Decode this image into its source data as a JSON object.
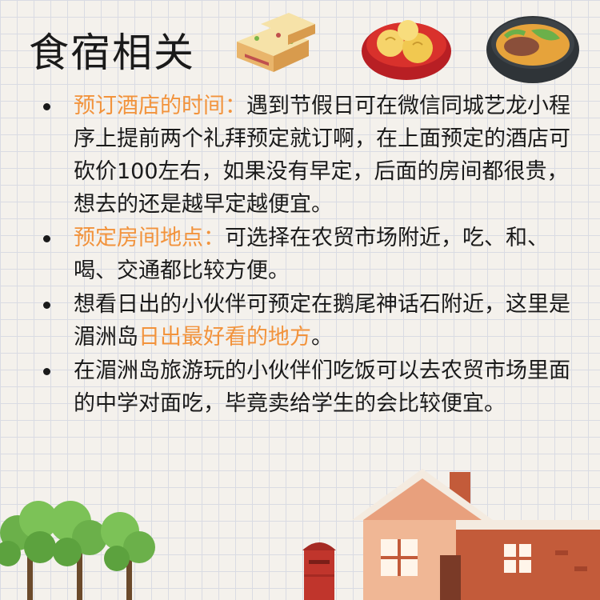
{
  "title": "食宿相关",
  "items": [
    {
      "lead": "预订酒店的时间：",
      "text": "遇到节假日可在微信同城艺龙小程序上提前两个礼拜预定就订啊，在上面预定的酒店可砍价100左右，如果没有早定，后面的房间都很贵，想去的还是越早定越便宜。"
    },
    {
      "lead": "预定房间地点：",
      "text": "可选择在农贸市场附近，吃、和、喝、交通都比较方便。"
    },
    {
      "pre": "想看日出的小伙伴可预定在鹅尾神话石附近，这里是湄洲岛",
      "hl": "日出最好看的地方",
      "post": "。"
    },
    {
      "text": "在湄洲岛旅游玩的小伙伴们吃饭可以去农贸市场里面的中学对面吃，毕竟卖给学生的会比较便宜。"
    }
  ],
  "icons": [
    "cake-icon",
    "bun-bowl-icon",
    "soup-bowl-icon",
    "tree-icon",
    "mailbox-icon",
    "house-icon"
  ],
  "colors": {
    "highlight": "#f2933c",
    "text": "#1a1a1a"
  }
}
